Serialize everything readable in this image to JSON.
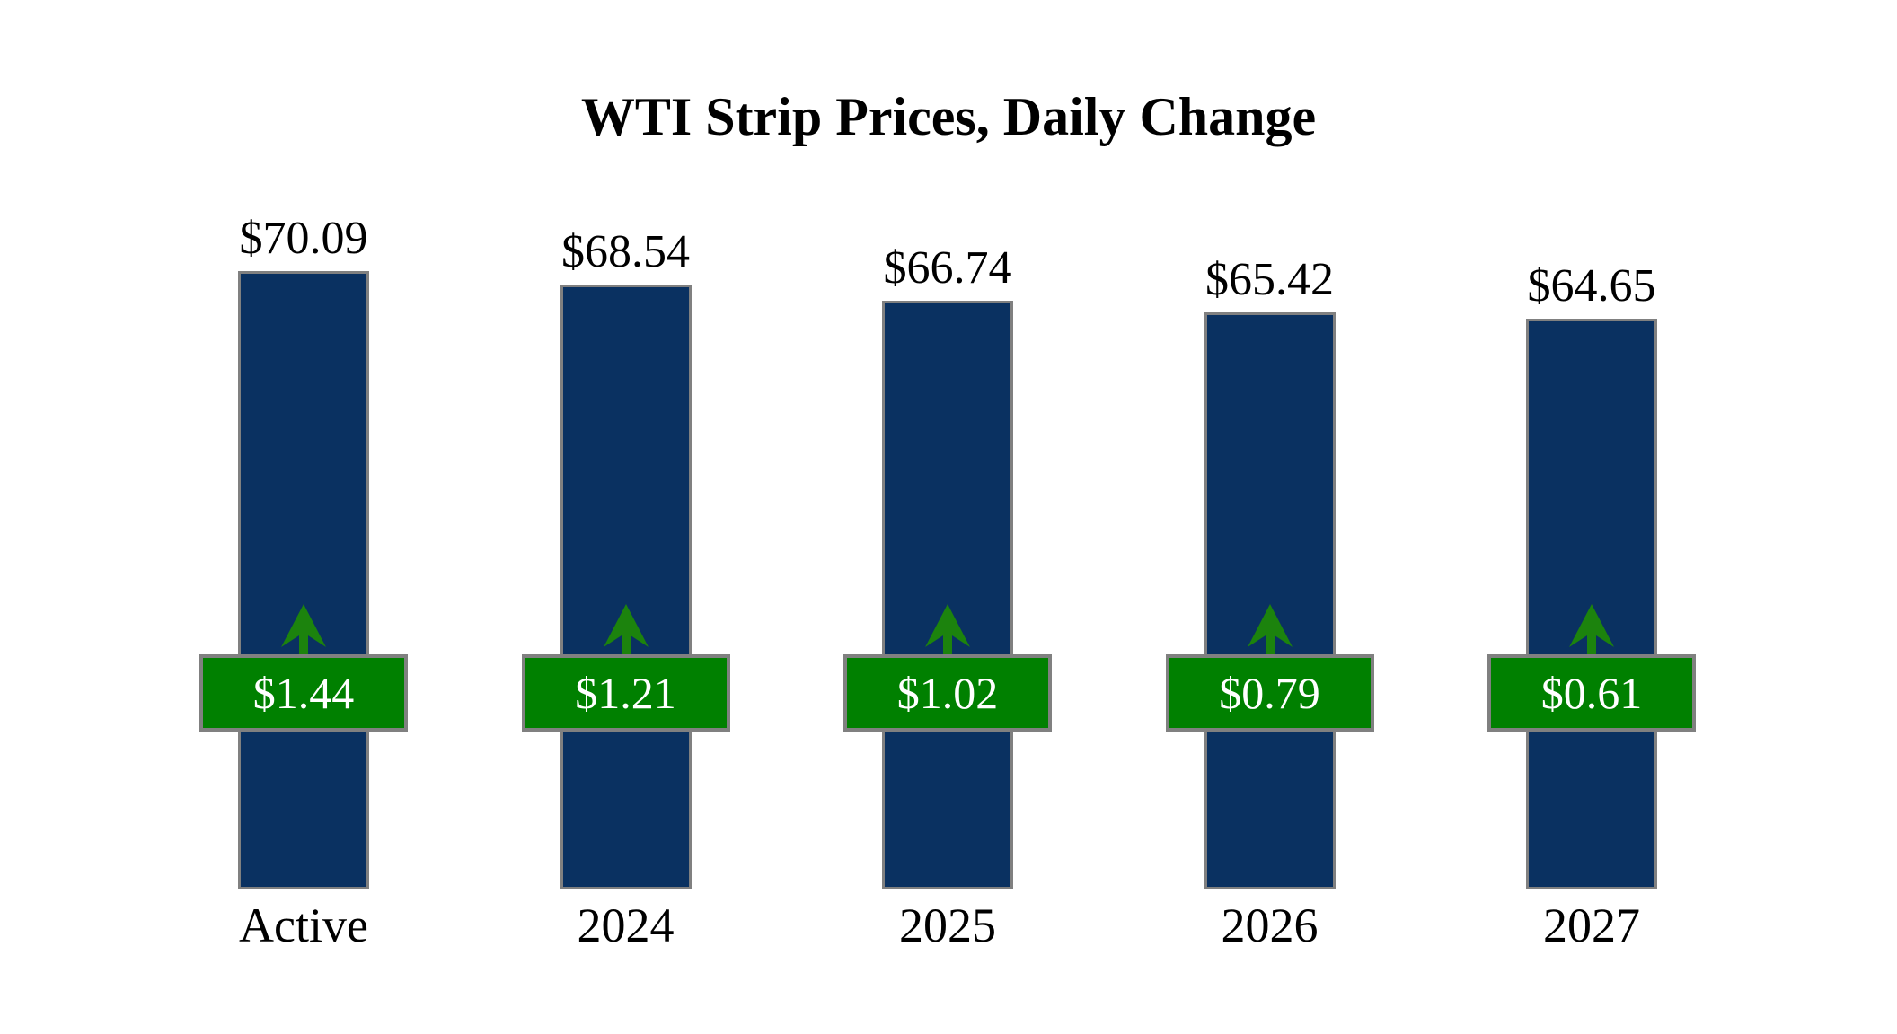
{
  "chart_data": {
    "type": "bar",
    "title": "WTI Strip Prices, Daily Change",
    "categories": [
      "Active",
      "2024",
      "2025",
      "2026",
      "2027"
    ],
    "series": [
      {
        "name": "strip_price",
        "values": [
          70.09,
          68.54,
          66.74,
          65.42,
          64.65
        ],
        "labels": [
          "$70.09",
          "$68.54",
          "$66.74",
          "$65.42",
          "$64.65"
        ]
      },
      {
        "name": "daily_change",
        "values": [
          1.44,
          1.21,
          1.02,
          0.79,
          0.61
        ],
        "labels": [
          "$1.44",
          "$1.21",
          "$1.02",
          "$0.79",
          "$0.61"
        ],
        "direction": "up"
      }
    ],
    "xlabel": "",
    "ylabel": "",
    "ylim": [
      0,
      74
    ],
    "grid": false,
    "legend_position": "none",
    "colors": {
      "background": "#ffffff",
      "bar_fill": "#0A3161",
      "bar_border": "#808080",
      "badge_fill": "#008000",
      "badge_border": "#808080",
      "badge_text": "#ffffff",
      "arrow": "#1C830D",
      "label_text": "#000000"
    }
  }
}
